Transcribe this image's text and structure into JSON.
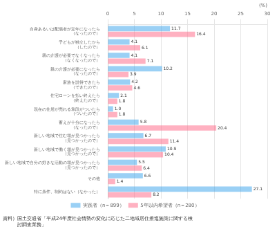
{
  "chart_data": {
    "type": "bar",
    "orientation": "horizontal",
    "categories": [
      "自身あるいは配偶者が定年になったら\n（なったので）",
      "子どもが独立したから\n（したので）",
      "親の介護が必要でなくなったら\n（なくなったので）",
      "親の介護が必要になったら\n（なったので）",
      "家族を説得できたら\n（できたので）",
      "住宅ローンを払い終えたら\n（終えたので）",
      "現在の住居が売れる算段がついたら\n（ついたので）",
      "蓄えが十分になったら\n（なったので）",
      "新しい地域で住む場が見つかったら\n（見つかったので）",
      "新しい地域で働く場が見つかったら\n（見つかったので）",
      "新しい地域で自分の好きな活動の場が見つかったら\n（見つかったので）",
      "その他",
      "特に条件、制約はない（なかった）"
    ],
    "series": [
      {
        "name": "実践者（n＝899）",
        "values": [
          11.7,
          4.1,
          4.1,
          10.2,
          4.2,
          2.1,
          1.0,
          5.8,
          6.7,
          10.9,
          5.5,
          6.6,
          27.1
        ],
        "value_labels": [
          "11.7",
          "4.1",
          "4.1",
          "10.2",
          "4.2",
          "2.1",
          "1.0",
          "5.8",
          "6.7",
          "10.9",
          "5.5",
          "6.6",
          "27.1"
        ]
      },
      {
        "name": "5年以内希望者（n＝280）",
        "values": [
          16.4,
          6.1,
          7.1,
          3.9,
          4.6,
          1.8,
          1.8,
          20.4,
          11.4,
          10.4,
          6.4,
          1.4,
          8.2
        ],
        "value_labels": [
          "16.4",
          "6.1",
          "7.1",
          "3.9",
          "4.6",
          "1.8",
          "1.8",
          "20.4",
          "11.4",
          "10.4",
          "6.4",
          "1.4",
          "8.2"
        ]
      }
    ],
    "xlim": [
      0,
      30
    ],
    "xticks": [
      0,
      5,
      10,
      15,
      20,
      25,
      30
    ],
    "xlabel": "(%)",
    "grid": true,
    "legend": "bottom",
    "data_labels": true,
    "source": "資料）国土交通省「平成24年度社会情勢の変化に応じた二地域居住推進施策に関する検\n　　　討調査業務」"
  }
}
